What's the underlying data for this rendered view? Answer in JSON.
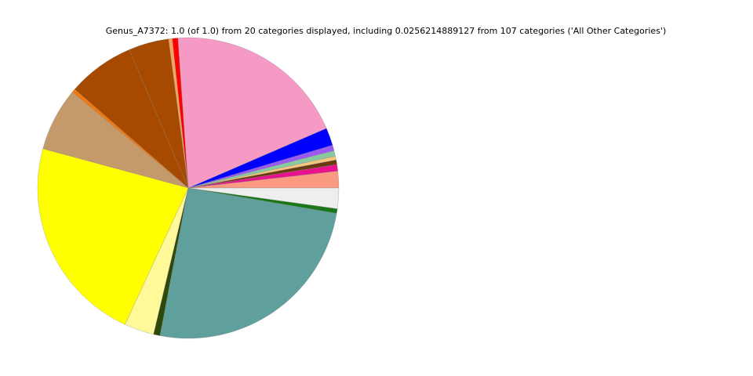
{
  "chart_data": {
    "type": "pie",
    "title": "Genus_A7372: 1.0 (of 1.0) from 20 categories displayed, including 0.0256214889127 from 107 categories ('All Other Categories')",
    "start_angle": 0,
    "direction": "counterclockwise",
    "values": [
      0.018,
      0.007,
      0.005,
      0.004,
      0.006,
      0.006,
      0.019,
      0.196,
      0.006,
      0.004,
      0.043,
      0.072,
      0.004,
      0.068,
      0.223,
      0.032,
      0.007,
      0.253,
      0.005,
      0.022
    ],
    "colors": [
      "#fa9a80",
      "#e8128f",
      "#6b3a0f",
      "#f5c77e",
      "#88c9a0",
      "#9b59f0",
      "#0000ff",
      "#f49ac4",
      "#ff0000",
      "#f4a460",
      "#a54a00",
      "#a54a00",
      "#f0780f",
      "#c49a6a",
      "#ffff00",
      "#fff99a",
      "#2d4a0a",
      "#5f9f9c",
      "#187818",
      "#eeeeee"
    ]
  }
}
